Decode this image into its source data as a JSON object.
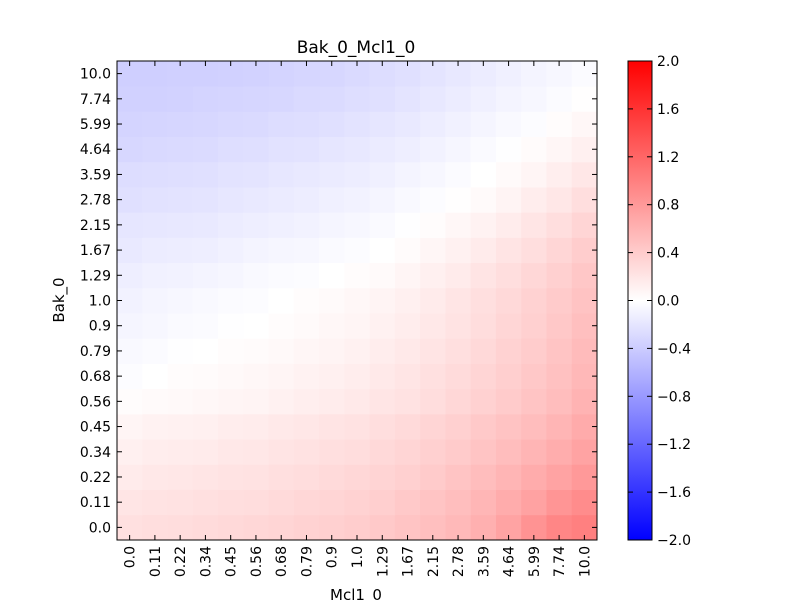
{
  "chart_data": {
    "type": "heatmap",
    "title": "Bak_0_Mcl1_0",
    "xlabel": "Mcl1_0",
    "ylabel": "Bak_0",
    "x_categories": [
      "0.0",
      "0.11",
      "0.22",
      "0.34",
      "0.45",
      "0.56",
      "0.68",
      "0.79",
      "0.9",
      "1.0",
      "1.29",
      "1.67",
      "2.15",
      "2.78",
      "3.59",
      "4.64",
      "5.99",
      "7.74",
      "10.0"
    ],
    "y_categories": [
      "0.0",
      "0.11",
      "0.22",
      "0.34",
      "0.45",
      "0.56",
      "0.68",
      "0.79",
      "0.9",
      "1.0",
      "1.29",
      "1.67",
      "2.15",
      "2.78",
      "3.59",
      "4.64",
      "5.99",
      "7.74",
      "10.0"
    ],
    "values": [
      [
        0.24,
        0.26,
        0.27,
        0.28,
        0.3,
        0.31,
        0.33,
        0.35,
        0.37,
        0.39,
        0.42,
        0.46,
        0.5,
        0.55,
        0.62,
        0.72,
        0.85,
        0.95,
        1.0
      ],
      [
        0.2,
        0.22,
        0.23,
        0.24,
        0.26,
        0.27,
        0.29,
        0.31,
        0.33,
        0.35,
        0.38,
        0.42,
        0.46,
        0.51,
        0.57,
        0.65,
        0.73,
        0.83,
        0.9
      ],
      [
        0.16,
        0.18,
        0.19,
        0.2,
        0.22,
        0.23,
        0.25,
        0.27,
        0.29,
        0.31,
        0.34,
        0.37,
        0.41,
        0.46,
        0.52,
        0.58,
        0.65,
        0.72,
        0.8
      ],
      [
        0.12,
        0.14,
        0.15,
        0.16,
        0.18,
        0.19,
        0.21,
        0.23,
        0.25,
        0.27,
        0.3,
        0.33,
        0.37,
        0.41,
        0.46,
        0.52,
        0.58,
        0.64,
        0.72
      ],
      [
        0.08,
        0.1,
        0.11,
        0.12,
        0.14,
        0.15,
        0.17,
        0.19,
        0.21,
        0.23,
        0.26,
        0.29,
        0.33,
        0.37,
        0.42,
        0.47,
        0.52,
        0.58,
        0.66
      ],
      [
        0.02,
        0.04,
        0.05,
        0.06,
        0.08,
        0.09,
        0.11,
        0.13,
        0.15,
        0.17,
        0.2,
        0.23,
        0.27,
        0.31,
        0.36,
        0.41,
        0.46,
        0.52,
        0.6
      ],
      [
        -0.02,
        0.0,
        0.02,
        0.03,
        0.05,
        0.06,
        0.08,
        0.1,
        0.12,
        0.14,
        0.17,
        0.2,
        0.24,
        0.28,
        0.33,
        0.38,
        0.43,
        0.49,
        0.56
      ],
      [
        -0.05,
        -0.03,
        -0.01,
        0.0,
        0.02,
        0.03,
        0.05,
        0.07,
        0.09,
        0.11,
        0.14,
        0.17,
        0.21,
        0.25,
        0.3,
        0.35,
        0.4,
        0.46,
        0.53
      ],
      [
        -0.08,
        -0.06,
        -0.04,
        -0.03,
        -0.01,
        0.0,
        0.02,
        0.04,
        0.06,
        0.08,
        0.11,
        0.14,
        0.18,
        0.22,
        0.27,
        0.32,
        0.37,
        0.43,
        0.5
      ],
      [
        -0.1,
        -0.08,
        -0.06,
        -0.05,
        -0.03,
        -0.02,
        0.0,
        0.02,
        0.04,
        0.06,
        0.09,
        0.12,
        0.16,
        0.2,
        0.25,
        0.3,
        0.35,
        0.41,
        0.47
      ],
      [
        -0.13,
        -0.11,
        -0.1,
        -0.09,
        -0.07,
        -0.05,
        -0.03,
        -0.02,
        0.0,
        0.02,
        0.04,
        0.08,
        0.12,
        0.16,
        0.21,
        0.26,
        0.31,
        0.37,
        0.44
      ],
      [
        -0.17,
        -0.15,
        -0.14,
        -0.13,
        -0.11,
        -0.09,
        -0.07,
        -0.06,
        -0.04,
        -0.02,
        0.0,
        0.03,
        0.07,
        0.11,
        0.16,
        0.21,
        0.26,
        0.32,
        0.39
      ],
      [
        -0.2,
        -0.19,
        -0.18,
        -0.17,
        -0.15,
        -0.13,
        -0.12,
        -0.1,
        -0.08,
        -0.06,
        -0.04,
        -0.01,
        0.02,
        0.06,
        0.1,
        0.15,
        0.2,
        0.26,
        0.33
      ],
      [
        -0.24,
        -0.23,
        -0.22,
        -0.21,
        -0.19,
        -0.17,
        -0.16,
        -0.14,
        -0.12,
        -0.1,
        -0.08,
        -0.05,
        -0.02,
        0.01,
        0.04,
        0.09,
        0.14,
        0.19,
        0.26
      ],
      [
        -0.27,
        -0.26,
        -0.25,
        -0.24,
        -0.22,
        -0.21,
        -0.19,
        -0.17,
        -0.16,
        -0.14,
        -0.12,
        -0.09,
        -0.06,
        -0.03,
        0.0,
        0.04,
        0.08,
        0.13,
        0.19
      ],
      [
        -0.31,
        -0.3,
        -0.29,
        -0.28,
        -0.26,
        -0.25,
        -0.23,
        -0.22,
        -0.2,
        -0.18,
        -0.16,
        -0.13,
        -0.1,
        -0.07,
        -0.04,
        -0.01,
        0.03,
        0.07,
        0.12
      ],
      [
        -0.34,
        -0.33,
        -0.32,
        -0.31,
        -0.3,
        -0.29,
        -0.27,
        -0.26,
        -0.24,
        -0.22,
        -0.2,
        -0.17,
        -0.14,
        -0.11,
        -0.08,
        -0.05,
        -0.02,
        0.02,
        0.06
      ],
      [
        -0.36,
        -0.36,
        -0.35,
        -0.34,
        -0.33,
        -0.32,
        -0.31,
        -0.29,
        -0.28,
        -0.26,
        -0.24,
        -0.21,
        -0.18,
        -0.15,
        -0.12,
        -0.09,
        -0.06,
        -0.03,
        0.01
      ],
      [
        -0.38,
        -0.38,
        -0.37,
        -0.37,
        -0.36,
        -0.35,
        -0.34,
        -0.32,
        -0.31,
        -0.29,
        -0.27,
        -0.24,
        -0.21,
        -0.18,
        -0.15,
        -0.12,
        -0.09,
        -0.06,
        -0.03
      ]
    ],
    "colorbar": {
      "vmin": -2.0,
      "vmax": 2.0,
      "ticks": [
        "2.0",
        "1.6",
        "1.2",
        "0.8",
        "0.4",
        "0.0",
        "−0.4",
        "−0.8",
        "−1.2",
        "−1.6",
        "−2.0"
      ],
      "colormap": "bwr",
      "low_color": "#0000ff",
      "mid_color": "#ffffff",
      "high_color": "#ff0000"
    },
    "grid": false,
    "legend": "colorbar-right"
  }
}
